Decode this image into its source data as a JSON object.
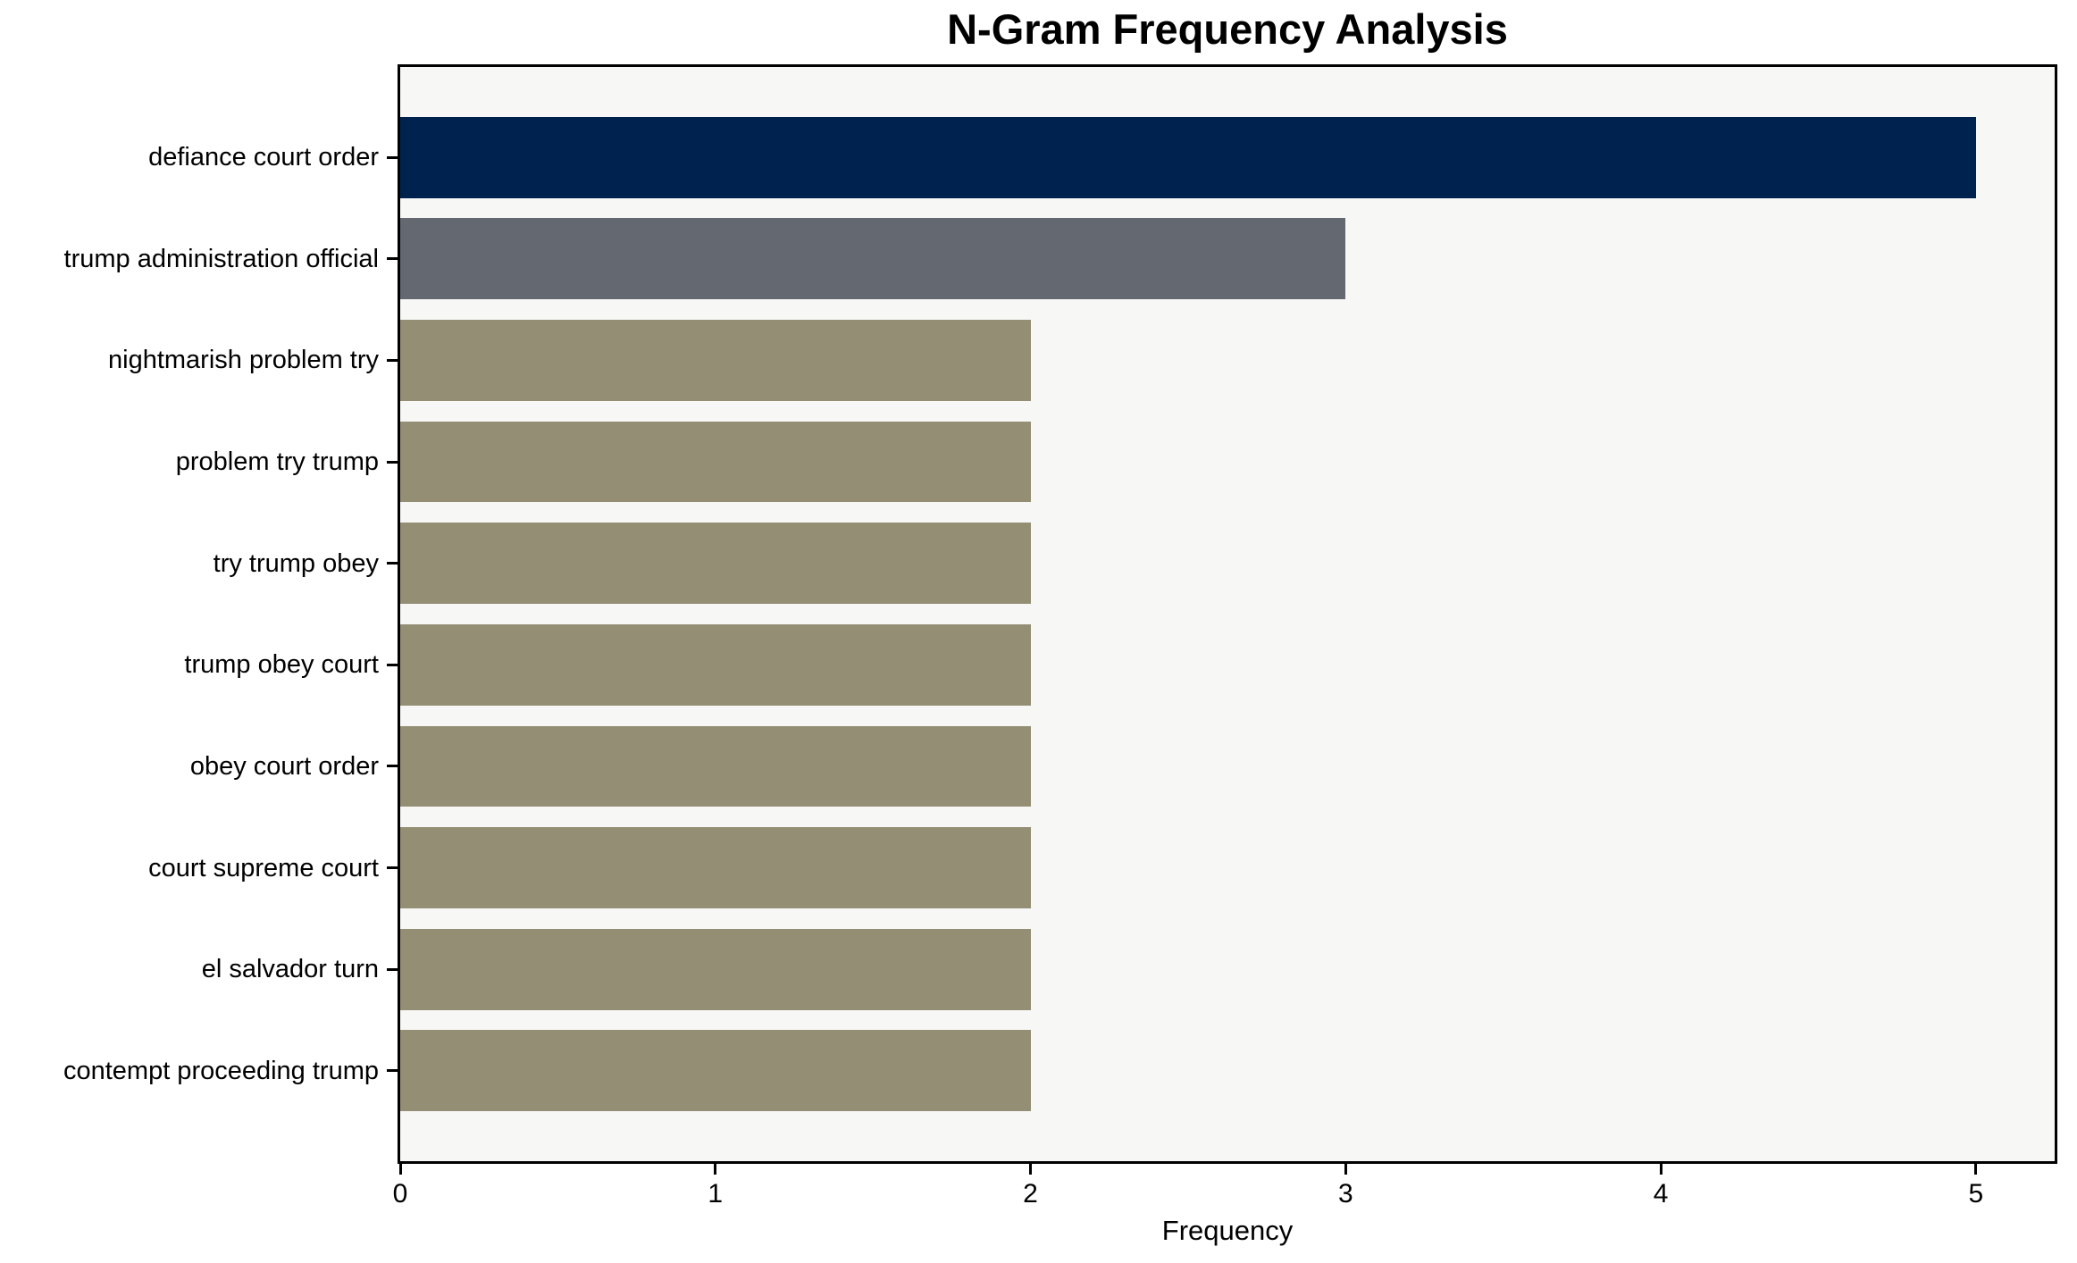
{
  "chart_data": {
    "type": "bar",
    "orientation": "horizontal",
    "title": "N-Gram Frequency Analysis",
    "xlabel": "Frequency",
    "ylabel": "",
    "categories": [
      "defiance court order",
      "trump administration official",
      "nightmarish problem try",
      "problem try trump",
      "try trump obey",
      "trump obey court",
      "obey court order",
      "court supreme court",
      "el salvador turn",
      "contempt proceeding trump"
    ],
    "values": [
      5,
      3,
      2,
      2,
      2,
      2,
      2,
      2,
      2,
      2
    ],
    "bar_colors": [
      "#00224e",
      "#646870",
      "#948e75",
      "#948e75",
      "#948e75",
      "#948e75",
      "#948e75",
      "#948e75",
      "#948e75",
      "#948e75"
    ],
    "xticks": [
      0,
      1,
      2,
      3,
      4,
      5
    ],
    "xlim": [
      0,
      5.25
    ],
    "grid": false,
    "legend": null,
    "plot_background": "#f7f7f6",
    "page_background": "#ffffff",
    "axis_color": "#000000"
  }
}
